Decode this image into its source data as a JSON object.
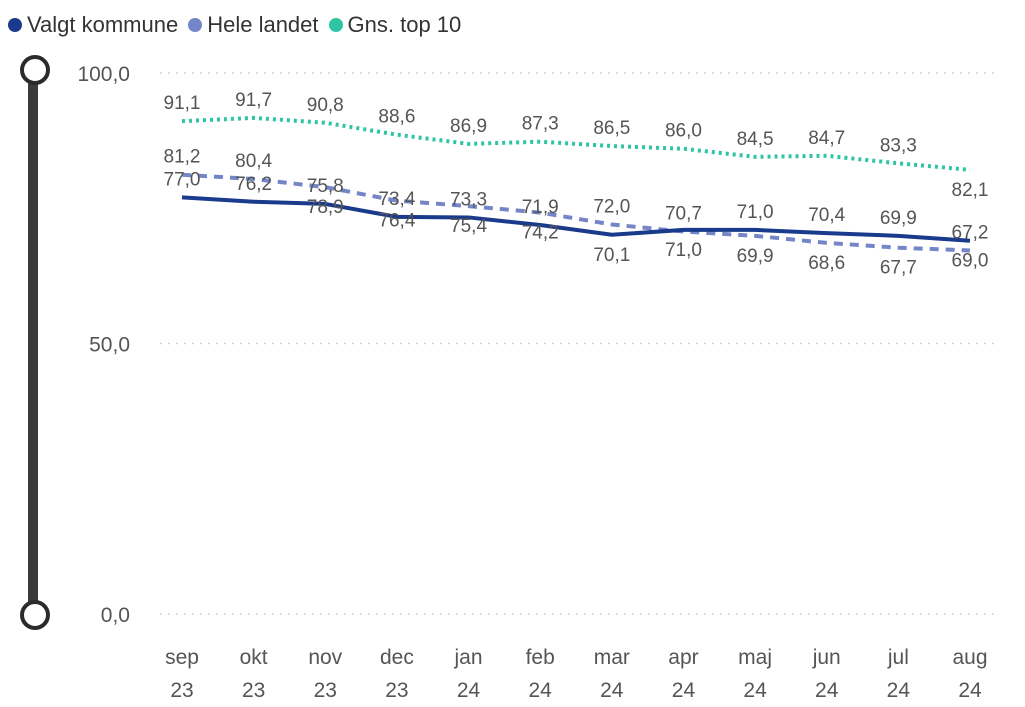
{
  "legend": {
    "items": [
      {
        "label": "Valgt kommune",
        "color": "#1a3a8c"
      },
      {
        "label": "Hele landet",
        "color": "#7486c8"
      },
      {
        "label": "Gns. top 10",
        "color": "#2ec4a4"
      }
    ]
  },
  "chart_data": {
    "type": "line",
    "categories": [
      [
        "sep",
        "23"
      ],
      [
        "okt",
        "23"
      ],
      [
        "nov",
        "23"
      ],
      [
        "dec",
        "23"
      ],
      [
        "jan",
        "24"
      ],
      [
        "feb",
        "24"
      ],
      [
        "mar",
        "24"
      ],
      [
        "apr",
        "24"
      ],
      [
        "maj",
        "24"
      ],
      [
        "jun",
        "24"
      ],
      [
        "jul",
        "24"
      ],
      [
        "aug",
        "24"
      ]
    ],
    "y_ticks": [
      "100,0",
      "50,0",
      "0,0"
    ],
    "ylim": [
      0,
      100
    ],
    "grid": true,
    "legend_position": "top-left",
    "series": [
      {
        "name": "Valgt kommune",
        "color": "#1a3a8c",
        "style": "solid",
        "values": [
          77.0,
          76.2,
          75.8,
          73.4,
          73.3,
          71.9,
          70.1,
          71.0,
          71.0,
          70.4,
          69.9,
          69.0
        ],
        "labels": [
          "77,0",
          "76,2",
          "75,8",
          "73,4",
          "73,3",
          "71,9",
          "70,1",
          "71,0",
          "71,0",
          "70,4",
          "69,9",
          "69,0"
        ],
        "label_pos": [
          "above",
          "above",
          "above",
          "above",
          "above",
          "above",
          "below",
          "below",
          "above",
          "above",
          "above",
          "below"
        ]
      },
      {
        "name": "Hele landet",
        "color": "#7486c8",
        "style": "dashed",
        "values": [
          81.2,
          80.4,
          78.9,
          76.4,
          75.4,
          74.2,
          72.0,
          70.7,
          69.9,
          68.6,
          67.7,
          67.2
        ],
        "labels": [
          "81,2",
          "80,4",
          "78,9",
          "76,4",
          "75,4",
          "74,2",
          "72,0",
          "70,7",
          "69,9",
          "68,6",
          "67,7",
          "67,2"
        ],
        "label_pos": [
          "above",
          "above",
          "below",
          "below",
          "below",
          "below",
          "above",
          "above",
          "below",
          "below",
          "below",
          "above"
        ]
      },
      {
        "name": "Gns. top 10",
        "color": "#2ec4a4",
        "style": "dotted",
        "values": [
          91.1,
          91.7,
          90.8,
          88.6,
          86.9,
          87.3,
          86.5,
          86.0,
          84.5,
          84.7,
          83.3,
          82.1
        ],
        "labels": [
          "91,1",
          "91,7",
          "90,8",
          "88,6",
          "86,9",
          "87,3",
          "86,5",
          "86,0",
          "84,5",
          "84,7",
          "83,3",
          "82,1"
        ],
        "label_pos": [
          "above",
          "above",
          "above",
          "above",
          "above",
          "above",
          "above",
          "above",
          "above",
          "above",
          "above",
          "below"
        ]
      }
    ]
  }
}
